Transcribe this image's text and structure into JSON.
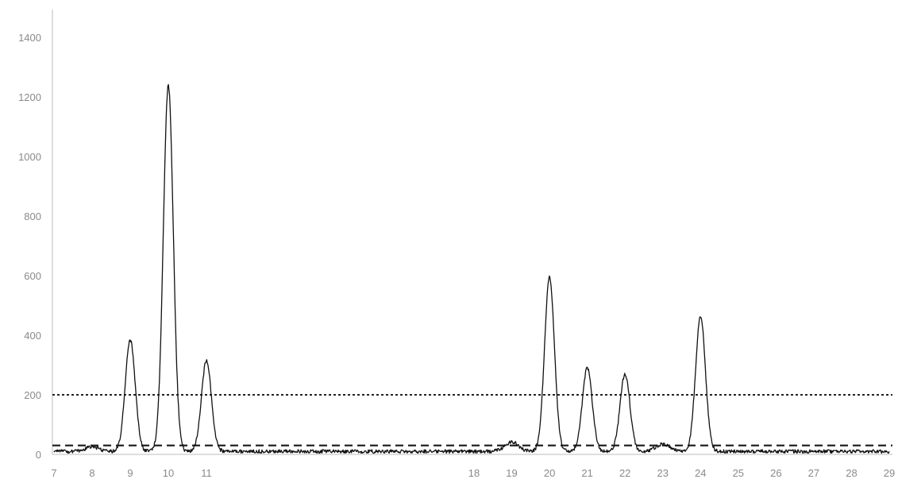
{
  "chart_data": {
    "type": "line",
    "title": "",
    "xlabel": "",
    "ylabel": "",
    "ylim": [
      0,
      1400
    ],
    "y_ticks": [
      "0",
      "200",
      "400",
      "600",
      "800",
      "1000",
      "1200",
      "1400"
    ],
    "x_ticks": [
      {
        "label": "7",
        "x": 7
      },
      {
        "label": "8",
        "x": 8
      },
      {
        "label": "9",
        "x": 9
      },
      {
        "label": "10",
        "x": 10
      },
      {
        "label": "11",
        "x": 11
      },
      {
        "label": "18",
        "x": 18
      },
      {
        "label": "19",
        "x": 19
      },
      {
        "label": "20",
        "x": 20
      },
      {
        "label": "21",
        "x": 21
      },
      {
        "label": "22",
        "x": 22
      },
      {
        "label": "23",
        "x": 23
      },
      {
        "label": "24",
        "x": 24
      },
      {
        "label": "25",
        "x": 25
      },
      {
        "label": "26",
        "x": 26
      },
      {
        "label": "27",
        "x": 27
      },
      {
        "label": "28",
        "x": 28
      },
      {
        "label": "29",
        "x": 29
      }
    ],
    "x_axis_break": {
      "left_from": 11,
      "right_from": 18
    },
    "peaks": [
      {
        "x": 8,
        "y": 25
      },
      {
        "x": 9,
        "y": 385
      },
      {
        "x": 10,
        "y": 1240
      },
      {
        "x": 11,
        "y": 315
      },
      {
        "x": 19,
        "y": 42
      },
      {
        "x": 20,
        "y": 595
      },
      {
        "x": 21,
        "y": 290
      },
      {
        "x": 22,
        "y": 270
      },
      {
        "x": 23,
        "y": 35
      },
      {
        "x": 24,
        "y": 465
      }
    ],
    "baseline": 10,
    "thresholds": [
      {
        "value": 200,
        "style": "dotted"
      },
      {
        "value": 30,
        "style": "dashed"
      }
    ],
    "grid": false,
    "legend": "none",
    "colors": {
      "line": "#111111",
      "axis": "#bdbdbd",
      "tick_text": "#8a8a8a"
    }
  }
}
